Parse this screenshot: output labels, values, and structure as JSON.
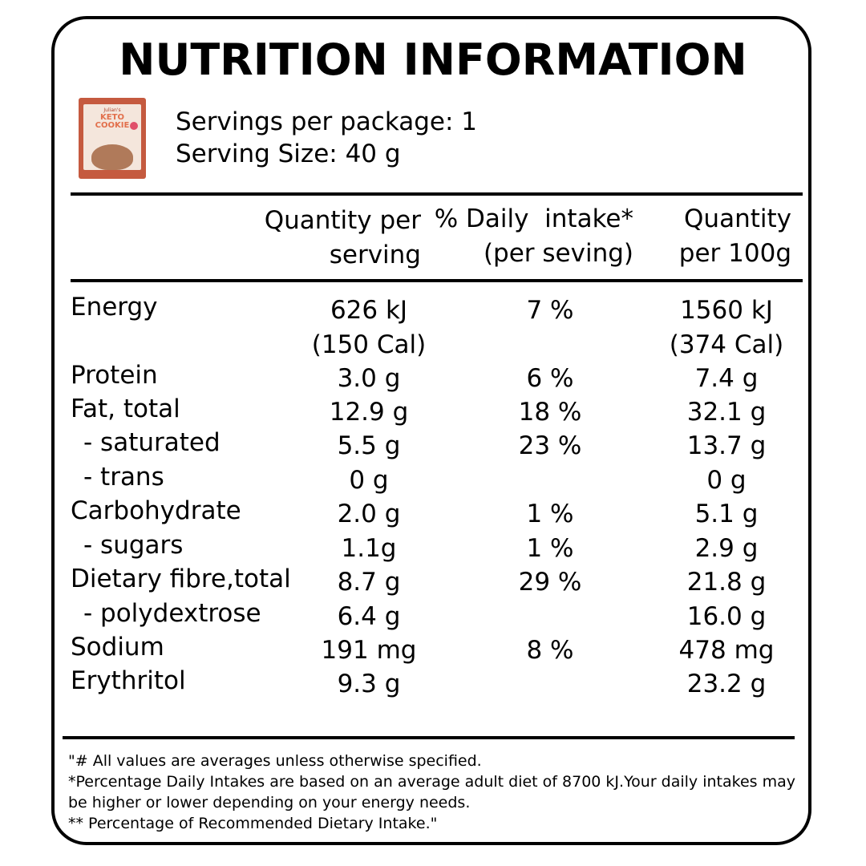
{
  "title": "NUTRITION INFORMATION",
  "product_image": {
    "brand_text": "Julian's",
    "product_text": "KETO COOKIE"
  },
  "servings": {
    "per_package": "Servings per package: 1",
    "size": "Serving Size: 40 g"
  },
  "table": {
    "headers": {
      "qps_line1": "Quantity per",
      "qps_line2": "serving",
      "di_line1": "% Daily  intake*",
      "di_line2": "(per seving)",
      "q100_line1": "Quantity",
      "q100_line2": "per 100g"
    },
    "rows": [
      {
        "name": "Energy",
        "qps": "626 kJ",
        "di": "7 %",
        "q100": "1560 kJ"
      },
      {
        "name": "",
        "qps": "(150 Cal)",
        "di": "",
        "q100": "(374 Cal)"
      },
      {
        "name": "Protein",
        "qps": "3.0 g",
        "di": "6 %",
        "q100": "7.4 g"
      },
      {
        "name": "Fat, total",
        "qps": "12.9 g",
        "di": "18 %",
        "q100": "32.1 g"
      },
      {
        "name": "- saturated",
        "qps": "5.5 g",
        "di": "23 %",
        "q100": "13.7 g"
      },
      {
        "name": "- trans",
        "qps": "0 g",
        "di": "",
        "q100": "0 g"
      },
      {
        "name": "Carbohydrate",
        "qps": "2.0 g",
        "di": "1 %",
        "q100": "5.1 g"
      },
      {
        "name": "- sugars",
        "qps": "1.1g",
        "di": "1 %",
        "q100": "2.9 g"
      },
      {
        "name": "Dietary fibre,total",
        "qps": "8.7 g",
        "di": "29 %",
        "q100": "21.8 g"
      },
      {
        "name": "- polydextrose",
        "qps": "6.4 g",
        "di": "",
        "q100": "16.0 g"
      },
      {
        "name": "Sodium",
        "qps": "191 mg",
        "di": "8 %",
        "q100": "478 mg"
      },
      {
        "name": "Erythritol",
        "qps": "9.3 g",
        "di": "",
        "q100": "23.2 g"
      }
    ]
  },
  "footnotes": {
    "line1": "\"# All values are averages unless otherwise specified.",
    "line2": "*Percentage Daily Intakes are based on an average adult diet of 8700 kJ.Your daily intakes may",
    "line3": "be higher or lower depending on your energy needs.",
    "line4": "** Percentage of Recommended Dietary Intake.\""
  }
}
